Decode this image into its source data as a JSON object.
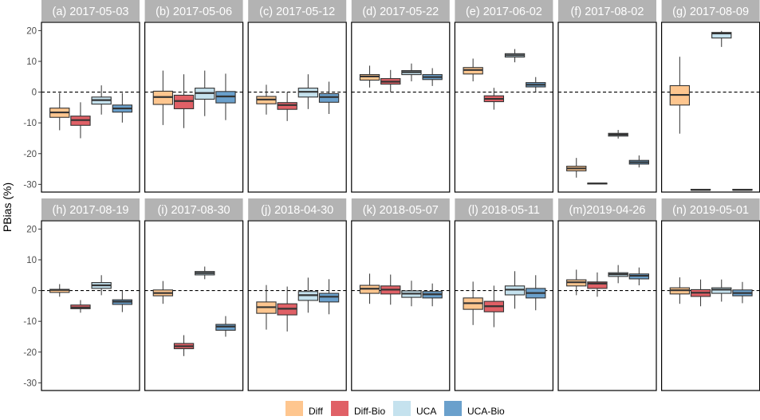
{
  "chart_data": {
    "type": "box",
    "ylabel": "PBias (%)",
    "ylim": [
      -32.5,
      22.7
    ],
    "yticks": [
      20,
      10,
      0,
      -10,
      -20,
      -30
    ],
    "reference_line": 0,
    "grid": false,
    "legend_position": "bottom",
    "series": [
      {
        "name": "Diff",
        "color": "#FEC68F"
      },
      {
        "name": "Diff-Bio",
        "color": "#E06066"
      },
      {
        "name": "UCA",
        "color": "#C5E2EE"
      },
      {
        "name": "UCA-Bio",
        "color": "#6AA0CC"
      }
    ],
    "box_stats_order": [
      "min",
      "q1",
      "median",
      "q3",
      "max"
    ],
    "facets": [
      {
        "label": "(a) 2017-05-03",
        "boxes": [
          [
            -12.4,
            -8.2,
            -6.6,
            -5.2,
            -0.3
          ],
          [
            -15,
            -10.8,
            -9.1,
            -7.8,
            -3.3
          ],
          [
            -7.3,
            -3.9,
            -2.6,
            -1.6,
            2.2
          ],
          [
            -9.9,
            -6.5,
            -5.3,
            -4.2,
            -0.3
          ]
        ]
      },
      {
        "label": "(b) 2017-05-06",
        "boxes": [
          [
            -10.7,
            -4,
            -1.6,
            0.3,
            7
          ],
          [
            -11.7,
            -5.4,
            -2.9,
            -1,
            5.8
          ],
          [
            -7.8,
            -2.3,
            -0.3,
            1.3,
            7
          ],
          [
            -9.1,
            -3.5,
            -1.4,
            0.2,
            6
          ]
        ]
      },
      {
        "label": "(c) 2017-05-12",
        "boxes": [
          [
            -7.3,
            -3.8,
            -2.4,
            -1.4,
            2.4
          ],
          [
            -9.4,
            -5.6,
            -4.2,
            -3.4,
            0
          ],
          [
            -5.5,
            -1.6,
            0.1,
            1.3,
            5.8
          ],
          [
            -7.1,
            -3.3,
            -1.6,
            -0.5,
            3.4
          ]
        ]
      },
      {
        "label": "(d) 2017-05-22",
        "boxes": [
          [
            1.5,
            3.9,
            5.1,
            5.7,
            8.6
          ],
          [
            0,
            2.6,
            3.4,
            4.4,
            7.2
          ],
          [
            3.5,
            5.7,
            6.5,
            7,
            9.3
          ],
          [
            2,
            4.1,
            4.9,
            5.7,
            7.8
          ]
        ]
      },
      {
        "label": "(e) 2017-06-02",
        "boxes": [
          [
            3.5,
            5.9,
            7.2,
            8,
            10.9
          ],
          [
            -5.7,
            -3.1,
            -2.2,
            -1.2,
            1.4
          ],
          [
            9.7,
            11.4,
            12,
            12.5,
            14
          ],
          [
            0,
            1.7,
            2.4,
            3.1,
            4.9
          ]
        ]
      },
      {
        "label": "(f) 2017-08-02",
        "boxes": [
          [
            -27.8,
            -25.6,
            -24.8,
            -24.1,
            -21.4
          ],
          [
            -29.9,
            -29.8,
            -29.7,
            -29.6,
            -29.5
          ],
          [
            -15.1,
            -14.3,
            -13.8,
            -13.4,
            -12.3
          ],
          [
            -24.5,
            -23.4,
            -22.8,
            -22.2,
            -20.6
          ]
        ]
      },
      {
        "label": "(g) 2017-08-09",
        "boxes": [
          [
            -13.5,
            -4.2,
            -0.9,
            2.1,
            11.5
          ],
          [
            -31.9,
            -31.9,
            -31.8,
            -31.6,
            -31.6
          ],
          [
            14.7,
            17.6,
            19.1,
            19.4,
            19.9
          ],
          [
            -31.9,
            -31.9,
            -31.8,
            -31.6,
            -31.6
          ]
        ]
      },
      {
        "label": "(h) 2017-08-19",
        "boxes": [
          [
            -2,
            -0.6,
            0.2,
            0.4,
            2.1
          ],
          [
            -7.2,
            -5.9,
            -5.5,
            -4.7,
            -3.1
          ],
          [
            -1.5,
            0.7,
            1.7,
            2.6,
            5
          ],
          [
            -7,
            -4.5,
            -3.6,
            -3,
            0
          ]
        ]
      },
      {
        "label": "(i)  2017-08-30",
        "boxes": [
          [
            -4.3,
            -1.7,
            -0.8,
            0.2,
            3.1
          ],
          [
            -21.3,
            -18.9,
            -18.1,
            -17.2,
            -14.5
          ],
          [
            3.7,
            5.1,
            5.7,
            6.2,
            7.8
          ],
          [
            -15,
            -12.9,
            -11.7,
            -11,
            -8.3
          ]
        ]
      },
      {
        "label": "(j)  2018-04-30",
        "boxes": [
          [
            -12.7,
            -7.4,
            -5.4,
            -3.7,
            1.8
          ],
          [
            -13.3,
            -7.9,
            -5.9,
            -4.3,
            1.3
          ],
          [
            -7.2,
            -3.2,
            -1.5,
            -0.3,
            4.2
          ],
          [
            -7.7,
            -3.7,
            -2,
            -0.9,
            3.7
          ]
        ]
      },
      {
        "label": "(k) 2018-05-07",
        "boxes": [
          [
            -4.3,
            -0.9,
            0.6,
            1.7,
            5.5
          ],
          [
            -4.6,
            -1.1,
            0.3,
            1.5,
            5.2
          ],
          [
            -5.1,
            -2.2,
            -1,
            -0.1,
            3.2
          ],
          [
            -5.1,
            -2.4,
            -1.2,
            -0.3,
            2.3
          ]
        ]
      },
      {
        "label": "(l)  2018-05-11",
        "boxes": [
          [
            -11.2,
            -6.1,
            -4.1,
            -2.4,
            2.9
          ],
          [
            -11.9,
            -6.9,
            -5.1,
            -3.5,
            1.6
          ],
          [
            -5.9,
            -1.4,
            0.3,
            1.5,
            6.3
          ],
          [
            -6.4,
            -2.4,
            -0.8,
            0.7,
            5
          ]
        ]
      },
      {
        "label": "(m)2019-04-26",
        "boxes": [
          [
            -1.5,
            1.5,
            2.7,
            3.5,
            6.8
          ],
          [
            -2,
            0.7,
            2.3,
            2.8,
            5.9
          ],
          [
            2.4,
            4.6,
            5.3,
            5.8,
            8.3
          ],
          [
            1.7,
            3.8,
            4.8,
            5.4,
            7.5
          ]
        ]
      },
      {
        "label": "(n) 2019-05-01",
        "boxes": [
          [
            -4.3,
            -1.1,
            0.1,
            0.9,
            4.3
          ],
          [
            -5.1,
            -1.9,
            -0.7,
            0.3,
            3.6
          ],
          [
            -3.6,
            -0.9,
            0.3,
            0.9,
            3.6
          ],
          [
            -4.1,
            -1.7,
            -0.8,
            0.2,
            2.8
          ]
        ]
      }
    ]
  }
}
